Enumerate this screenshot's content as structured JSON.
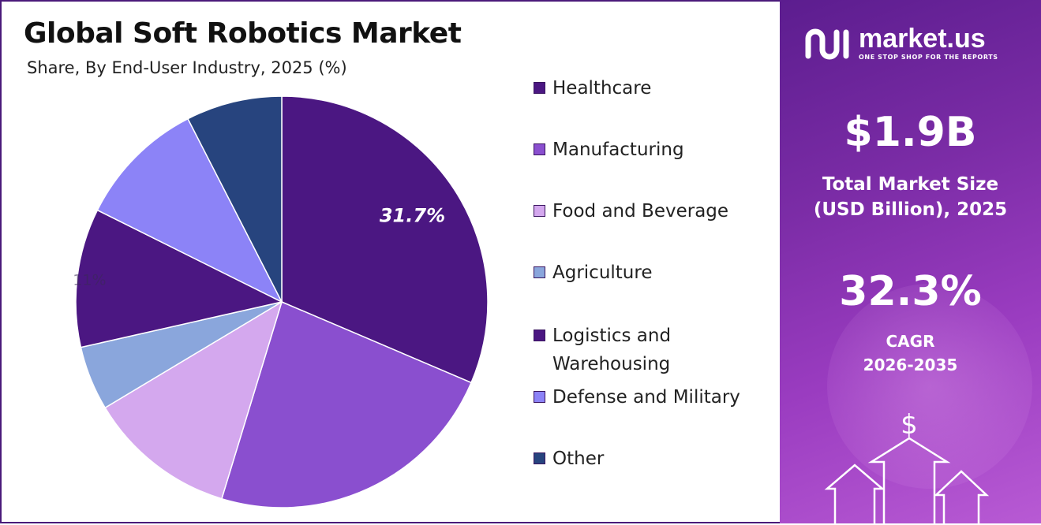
{
  "title": "Global Soft Robotics Market",
  "subtitle": "Share, By End-User Industry, 2025 (%)",
  "chart_data": {
    "type": "pie",
    "title": "Global Soft Robotics Market",
    "subtitle": "Share, By End-User Industry, 2025 (%)",
    "categories": [
      "Healthcare",
      "Manufacturing",
      "Food and Beverage",
      "Agriculture",
      "Logistics and Warehousing",
      "Defense and Military",
      "Other"
    ],
    "values": [
      31.7,
      23.5,
      11.8,
      5.1,
      11,
      10.2,
      7.6
    ],
    "colors": [
      "#4b1782",
      "#8a4fcf",
      "#d4a8ee",
      "#8aa6dc",
      "#4b1782",
      "#8c83f7",
      "#27447e"
    ],
    "data_labels": [
      {
        "category": "Healthcare",
        "text": "31.7%"
      },
      {
        "category": "Logistics and Warehousing",
        "text": "11%"
      }
    ],
    "legend_position": "right"
  },
  "legend": [
    {
      "label": "Healthcare"
    },
    {
      "label": "Manufacturing"
    },
    {
      "label": "Food and Beverage"
    },
    {
      "label": "Agriculture"
    },
    {
      "label": "Logistics and Warehousing"
    },
    {
      "label": "Defense and Military"
    },
    {
      "label": "Other"
    }
  ],
  "brand": {
    "name": "market.us",
    "tagline": "ONE STOP SHOP FOR THE REPORTS"
  },
  "market_size": {
    "value": "$1.9B",
    "label_line1": "Total Market Size",
    "label_line2": "(USD Billion), 2025"
  },
  "cagr": {
    "value": "32.3%",
    "label_line1": "CAGR",
    "label_line2": "2026-2035"
  },
  "decor": {
    "currency_symbol": "$"
  },
  "colors": {
    "panel_dark": "#5c1d8f",
    "panel_light": "#b85ad4",
    "border": "#4a1a7a"
  }
}
